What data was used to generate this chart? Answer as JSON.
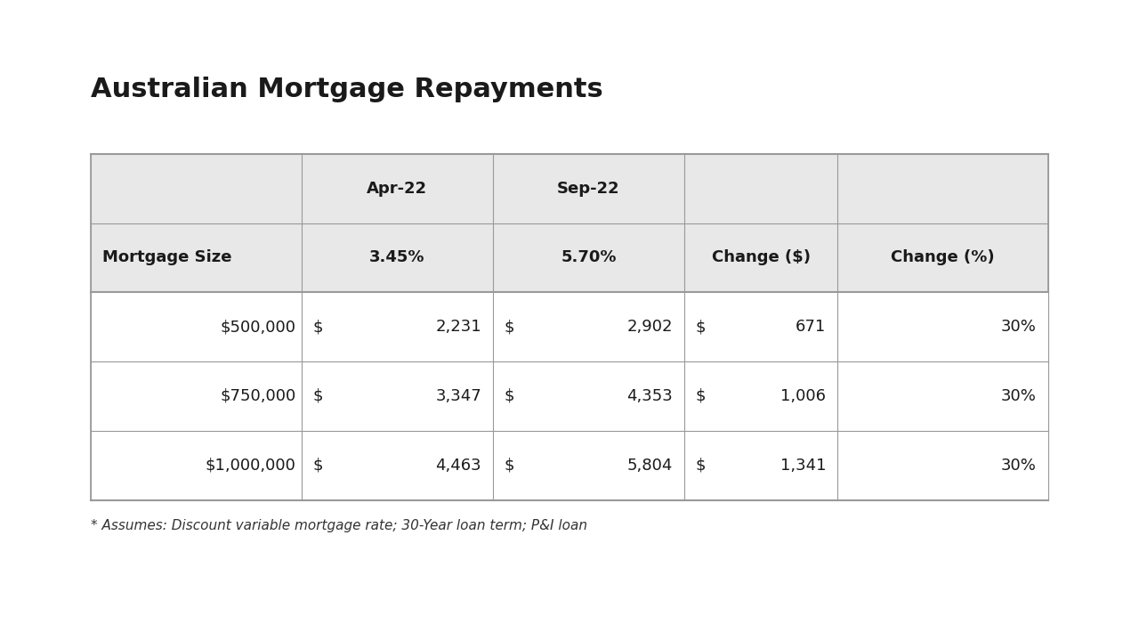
{
  "title": "Australian Mortgage Repayments",
  "background_color": "#ffffff",
  "table_bg_color": "#e8e8e8",
  "row_bg_color": "#f5f5f5",
  "border_color": "#999999",
  "header_row1": [
    "",
    "Apr-22",
    "Sep-22",
    "",
    ""
  ],
  "header_row2": [
    "Mortgage Size",
    "3.45%",
    "5.70%",
    "Change ($)",
    "Change (%)"
  ],
  "rows": [
    [
      "$500,000",
      "$",
      "2,231",
      "$",
      "2,902",
      "$",
      "671",
      "30%"
    ],
    [
      "$750,000",
      "$",
      "3,347",
      "$",
      "4,353",
      "$",
      "1,006",
      "30%"
    ],
    [
      "$1,000,000",
      "$",
      "4,463",
      "$",
      "5,804",
      "$",
      "1,341",
      "30%"
    ]
  ],
  "footnote": "* Assumes: Discount variable mortgage rate; 30-Year loan term; P&I loan",
  "title_fontsize": 22,
  "header_fontsize": 13,
  "cell_fontsize": 13,
  "footnote_fontsize": 11
}
